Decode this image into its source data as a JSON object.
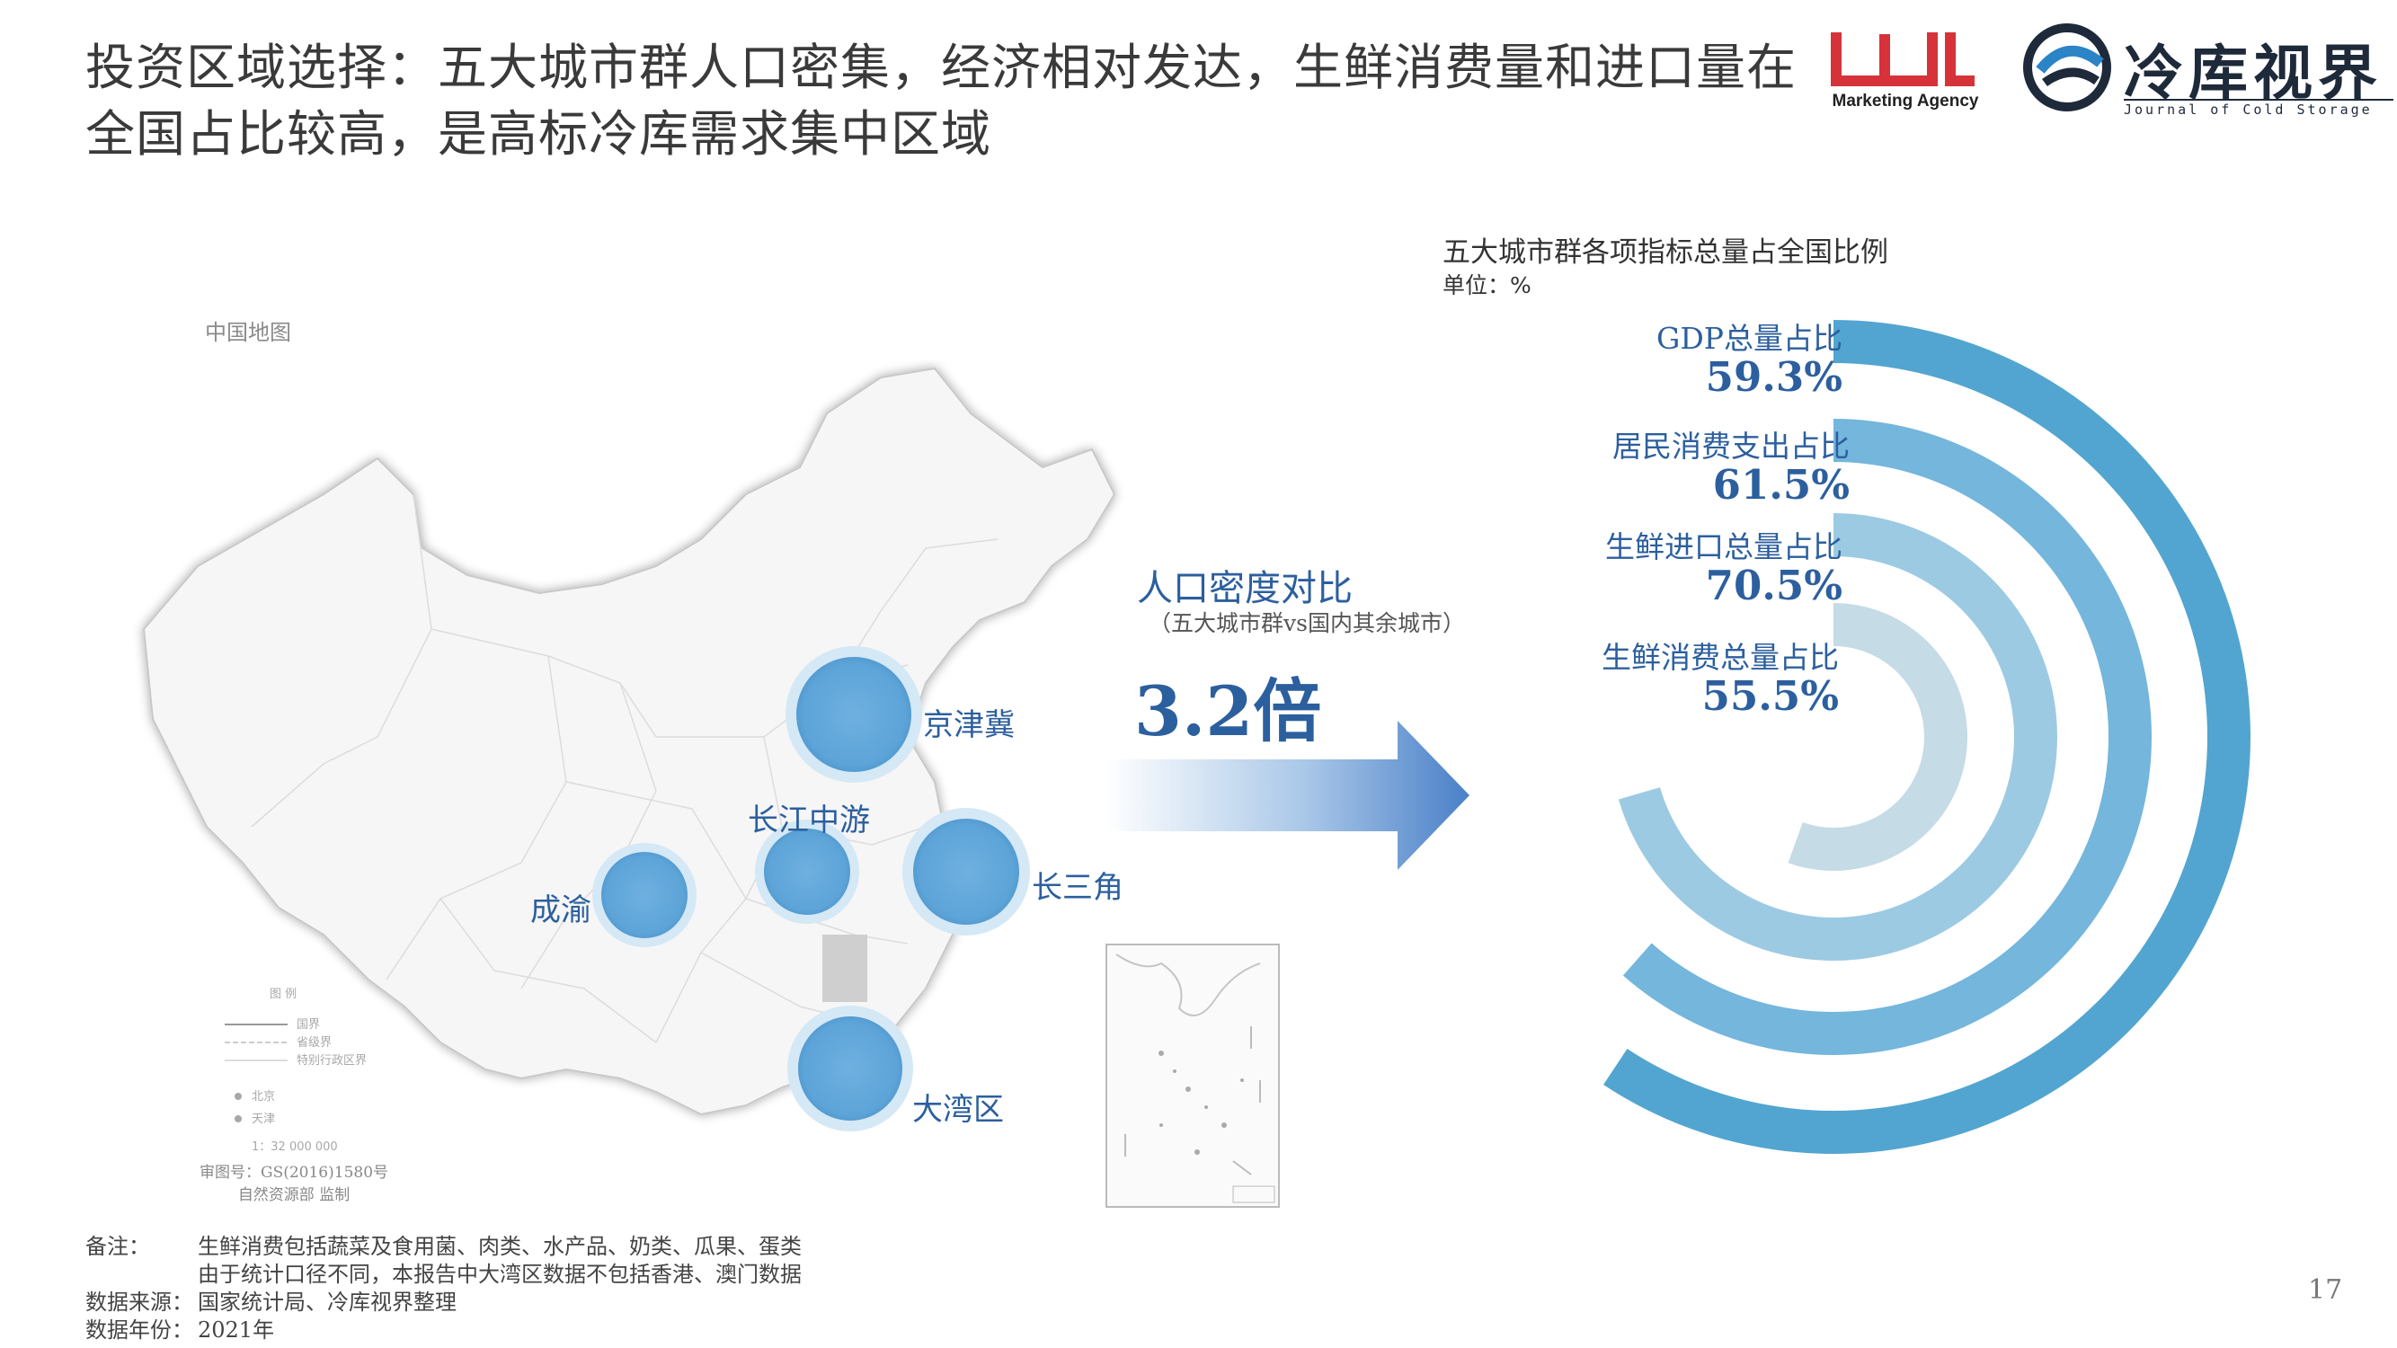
{
  "header": {
    "title_line1": "投资区域选择：五大城市群人口密集，经济相对发达，生鲜消费量和进口量在",
    "title_line2": "全国占比较高，是高标冷库需求集中区域",
    "logo1_text": "Marketing Agency",
    "logo2_text": "冷库视界",
    "logo2_sub": "Journal of Cold Storage"
  },
  "map": {
    "label": "中国地图",
    "regions": [
      "京津冀",
      "长江中游",
      "长三角",
      "成渝",
      "大湾区"
    ],
    "review_no": "审图号：GS(2016)1580号",
    "review_org": "自然资源部 监制",
    "scale": "1：32 000 000"
  },
  "density": {
    "title": "人口密度对比",
    "subtitle": "（五大城市群vs国内其余城市）",
    "value": "3.2倍"
  },
  "chart_data": {
    "type": "radial-bar",
    "title": "五大城市群各项指标总量占全国比例",
    "unit": "单位：%",
    "series": [
      {
        "label": "GDP总量占比",
        "value": 59.3,
        "display": "59.3%",
        "color": "#52a5d0"
      },
      {
        "label": "居民消费支出占比",
        "value": 61.5,
        "display": "61.5%",
        "color": "#74b6dc"
      },
      {
        "label": "生鲜进口总量占比",
        "value": 70.5,
        "display": "70.5%",
        "color": "#9ccae3"
      },
      {
        "label": "生鲜消费总量占比",
        "value": 55.5,
        "display": "55.5%",
        "color": "#c5dbe6"
      }
    ]
  },
  "notes": {
    "remark_key": "备注：",
    "remark_1": "生鲜消费包括蔬菜及食用菌、肉类、水产品、奶类、瓜果、蛋类",
    "remark_2": "由于统计口径不同，本报告中大湾区数据不包括香港、澳门数据",
    "source_key": "数据来源：",
    "source_val": "国家统计局、冷库视界整理",
    "year_key": "数据年份：",
    "year_val": "2021年"
  },
  "page_number": "17"
}
